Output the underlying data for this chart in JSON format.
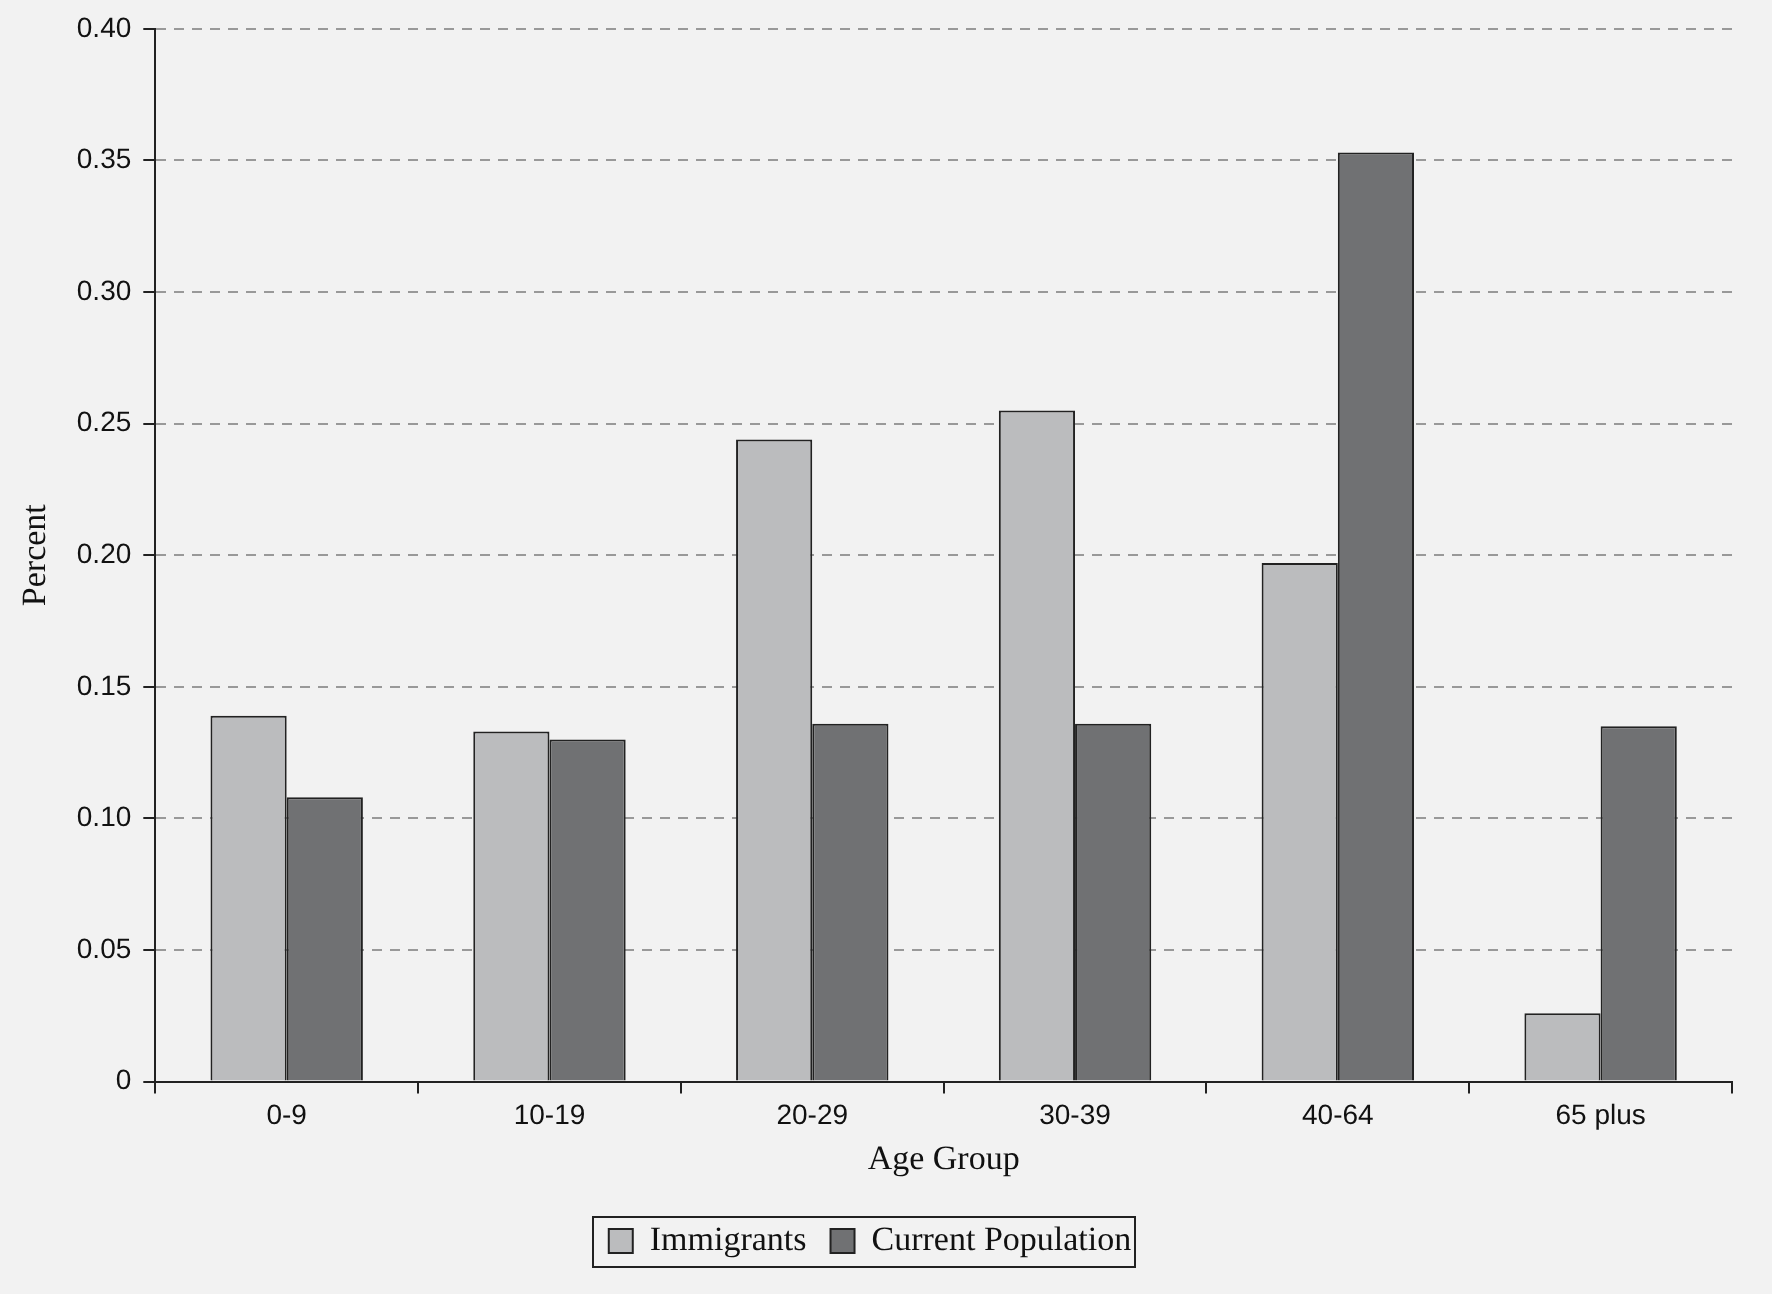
{
  "chart_data": {
    "type": "bar",
    "xlabel": "Age Group",
    "ylabel": "Percent",
    "categories": [
      "0-9",
      "10-19",
      "20-29",
      "30-39",
      "40-64",
      "65 plus"
    ],
    "series": [
      {
        "name": "Immigrants",
        "color": "#bbbcbe",
        "values": [
          0.139,
          0.133,
          0.244,
          0.255,
          0.197,
          0.026
        ]
      },
      {
        "name": "Current Population",
        "color": "#707173",
        "values": [
          0.108,
          0.13,
          0.136,
          0.136,
          0.353,
          0.135
        ]
      }
    ],
    "ylim": [
      0,
      0.4
    ],
    "yticks": [
      0,
      0.05,
      {
        "value": 0.1,
        "label": "0.10"
      },
      0.15,
      {
        "value": 0.2,
        "label": "0.20"
      },
      0.25,
      {
        "value": 0.3,
        "label": "0.30"
      },
      0.35,
      {
        "value": 0.4,
        "label": "0.40"
      }
    ],
    "grid": "y",
    "legend": "bottom"
  }
}
